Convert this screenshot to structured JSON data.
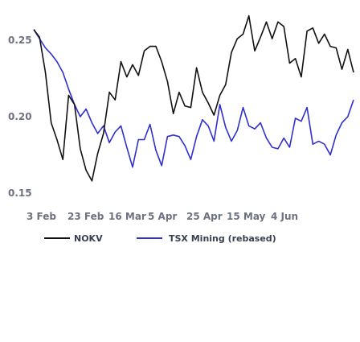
{
  "chart_data": {
    "type": "line",
    "title": "",
    "xlabel": "",
    "ylabel": "",
    "ylim": [
      0.15,
      0.27
    ],
    "y_ticks": [
      0.25,
      0.2,
      0.15
    ],
    "y_tick_labels": [
      "0.25",
      "0.20",
      "0.15"
    ],
    "x_tick_labels": [
      "3 Feb",
      "23 Feb",
      "16 Mar",
      "5 Apr",
      "25 Apr",
      "15 May",
      "4 Jun"
    ],
    "grid": false,
    "legend_position": "bottom",
    "series": [
      {
        "name": "NOKV",
        "color": "#111111",
        "values": [
          0.257,
          0.252,
          0.229,
          0.196,
          0.185,
          0.172,
          0.214,
          0.208,
          0.179,
          0.165,
          0.158,
          0.176,
          0.189,
          0.216,
          0.211,
          0.236,
          0.226,
          0.234,
          0.227,
          0.243,
          0.246,
          0.246,
          0.236,
          0.223,
          0.202,
          0.216,
          0.207,
          0.206,
          0.232,
          0.216,
          0.209,
          0.201,
          0.214,
          0.221,
          0.242,
          0.251,
          0.254,
          0.266,
          0.243,
          0.252,
          0.262,
          0.251,
          0.262,
          0.259,
          0.235,
          0.238,
          0.226,
          0.256,
          0.258,
          0.248,
          0.254,
          0.246,
          0.245,
          0.231,
          0.244,
          0.229
        ]
      },
      {
        "name": "TSX Mining (rebased)",
        "color": "#2f2fd0",
        "values": [
          0.257,
          0.251,
          0.245,
          0.241,
          0.236,
          0.229,
          0.218,
          0.208,
          0.2,
          0.205,
          0.196,
          0.189,
          0.194,
          0.183,
          0.19,
          0.194,
          0.18,
          0.167,
          0.185,
          0.185,
          0.195,
          0.178,
          0.168,
          0.187,
          0.188,
          0.187,
          0.181,
          0.172,
          0.187,
          0.198,
          0.194,
          0.184,
          0.208,
          0.193,
          0.184,
          0.191,
          0.206,
          0.194,
          0.192,
          0.196,
          0.186,
          0.18,
          0.179,
          0.186,
          0.18,
          0.199,
          0.197,
          0.206,
          0.182,
          0.184,
          0.182,
          0.175,
          0.188,
          0.196,
          0.2,
          0.211
        ]
      }
    ]
  }
}
